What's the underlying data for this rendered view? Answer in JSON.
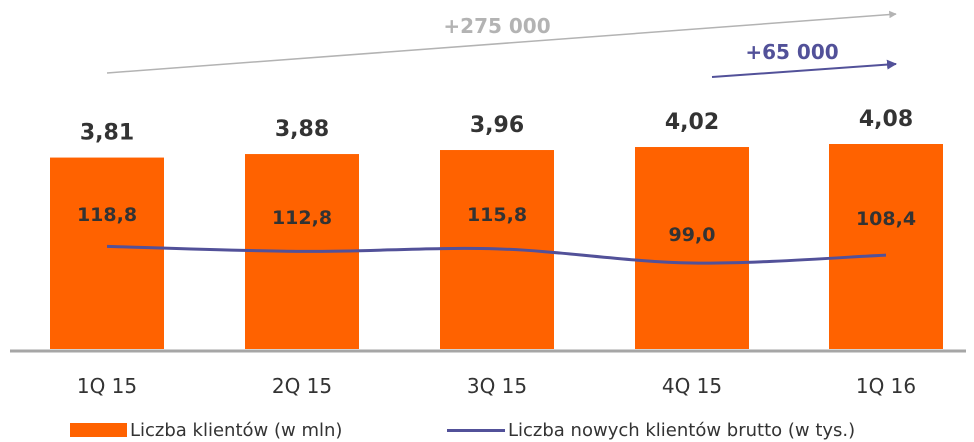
{
  "chart_data": {
    "type": "bar",
    "categories": [
      "1Q 15",
      "2Q 15",
      "3Q 15",
      "4Q 15",
      "1Q 16"
    ],
    "series": [
      {
        "name": "Liczba klientów (w mln)",
        "type": "bar",
        "values": [
          3.81,
          3.88,
          3.96,
          4.02,
          4.08
        ],
        "labels": [
          "3,81",
          "3,88",
          "3,96",
          "4,02",
          "4,08"
        ],
        "color": "#ff6200"
      },
      {
        "name": "Liczba nowych klientów brutto (w tys.)",
        "type": "line",
        "values": [
          118.8,
          112.8,
          115.8,
          99.0,
          108.4
        ],
        "labels": [
          "118,8",
          "112,8",
          "115,8",
          "99,0",
          "108,4"
        ],
        "color": "#525199"
      }
    ],
    "annotations": [
      {
        "text": "+275 000",
        "from": "1Q 15",
        "to": "1Q 16",
        "color": "#b3b3b3"
      },
      {
        "text": "+65 000",
        "from": "4Q 15",
        "to": "1Q 16",
        "color": "#525199"
      }
    ],
    "legend_position": "bottom",
    "grid": false
  },
  "colors": {
    "axis": "#a6a6a6",
    "text": "#333333"
  }
}
